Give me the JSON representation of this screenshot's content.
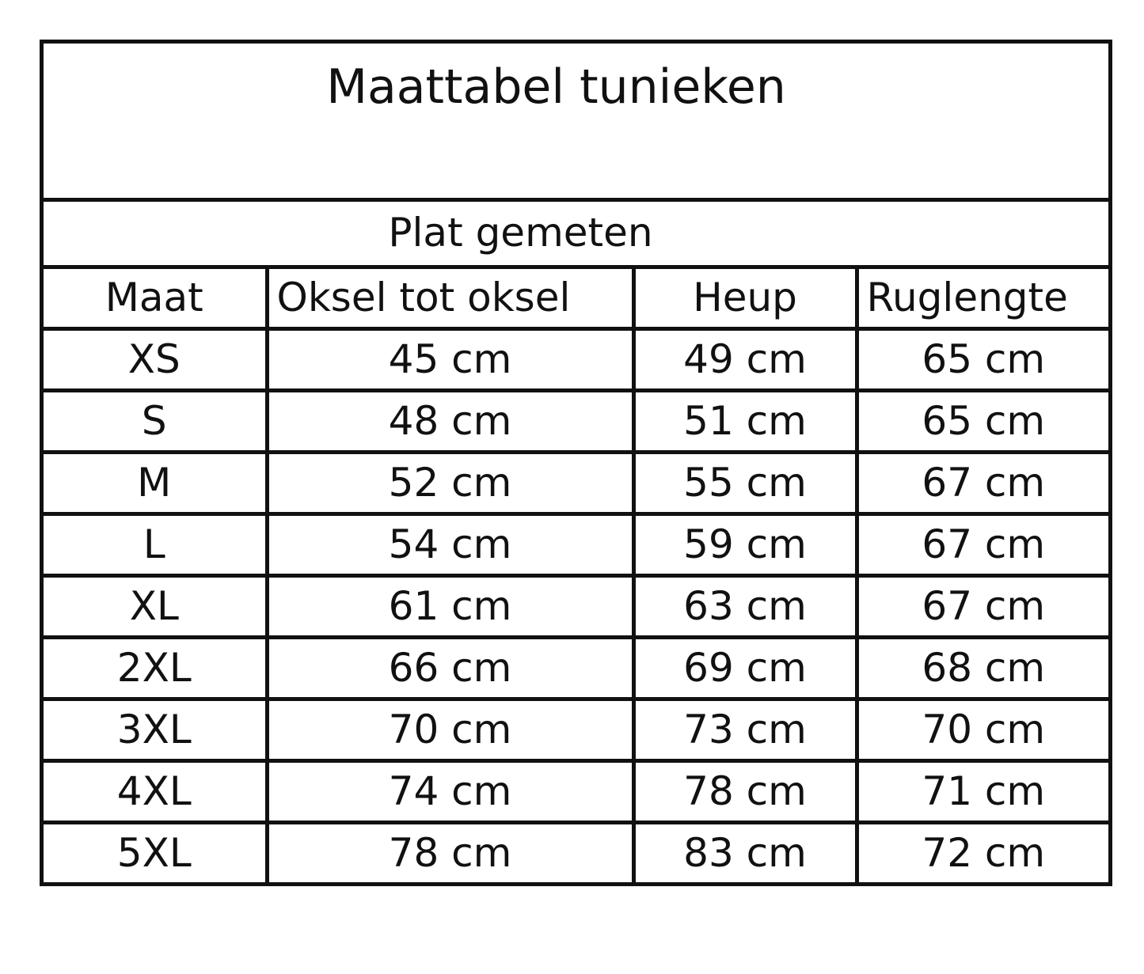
{
  "title": "Maattabel tunieken",
  "subtitle": "Plat gemeten",
  "headers": [
    "Maat",
    "Oksel tot oksel",
    "Heup",
    "Ruglengte"
  ],
  "rows": [
    [
      "XS",
      "45 cm",
      "49 cm",
      "65 cm"
    ],
    [
      "S",
      "48 cm",
      "51 cm",
      "65 cm"
    ],
    [
      "M",
      "52 cm",
      "55 cm",
      "67 cm"
    ],
    [
      "L",
      "54 cm",
      "59 cm",
      "67 cm"
    ],
    [
      "XL",
      "61 cm",
      "63 cm",
      "67 cm"
    ],
    [
      "2XL",
      "66 cm",
      "69 cm",
      "68 cm"
    ],
    [
      "3XL",
      "70 cm",
      "73 cm",
      "70 cm"
    ],
    [
      "4XL",
      "74 cm",
      "78 cm",
      "71 cm"
    ],
    [
      "5XL",
      "78 cm",
      "83 cm",
      "72 cm"
    ]
  ]
}
